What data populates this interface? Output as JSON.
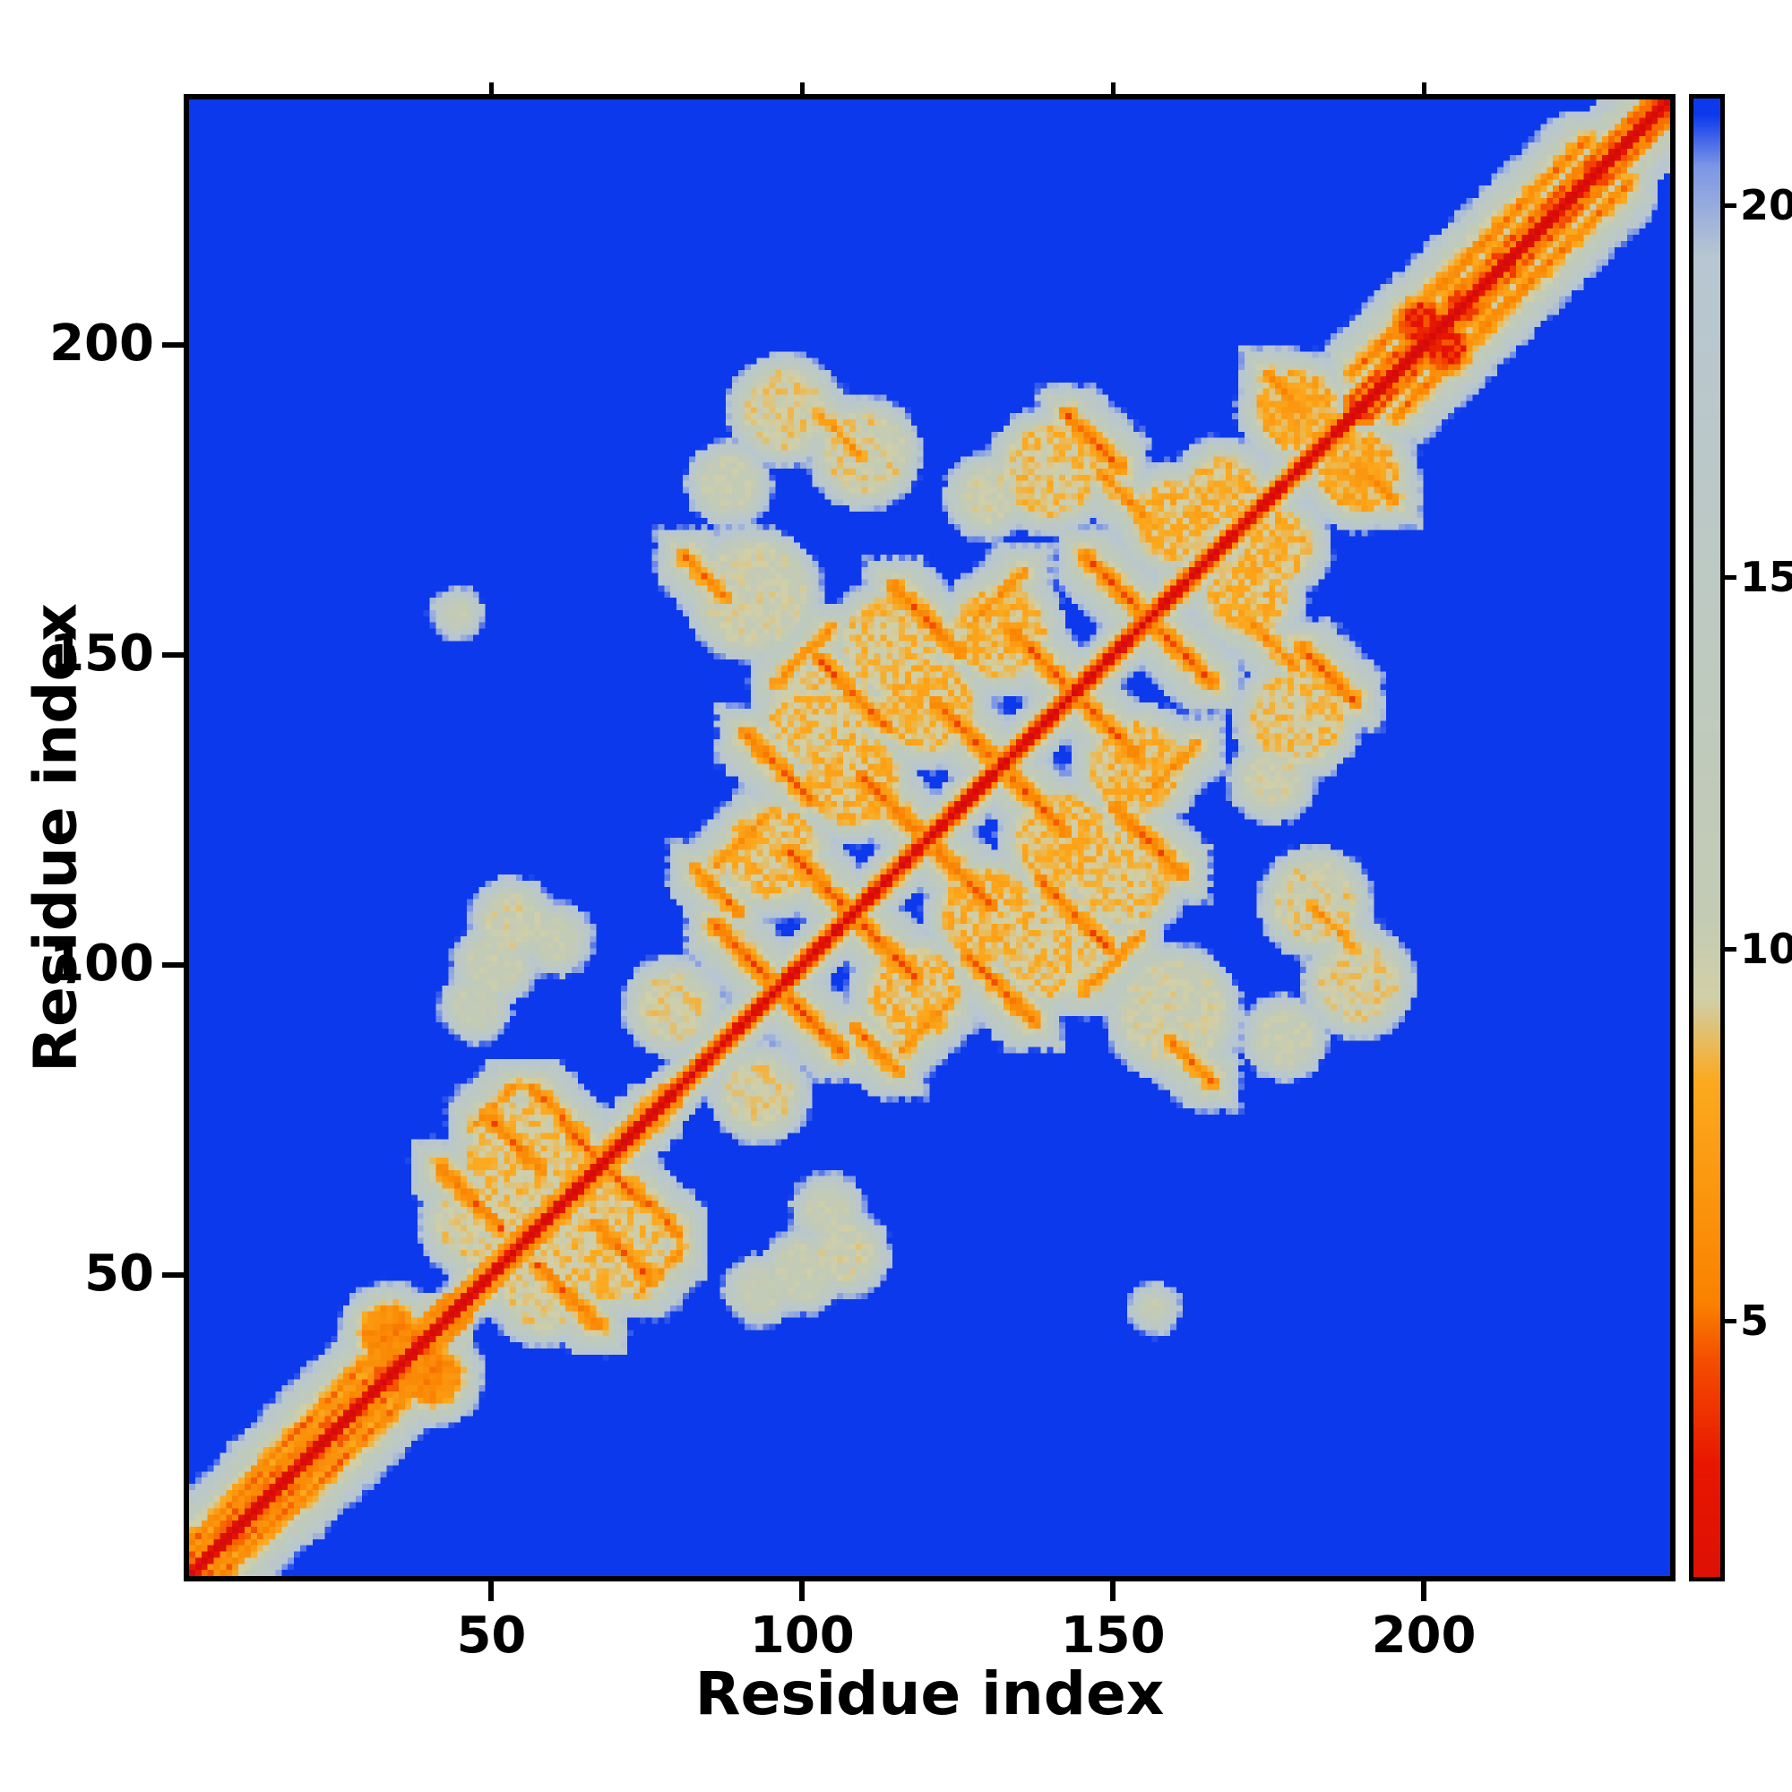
{
  "figure": {
    "background": "#ffffff",
    "frame_color": "#000000"
  },
  "chart_data": {
    "type": "heatmap",
    "title": "",
    "xlabel": "Residue index",
    "ylabel": "Residue index",
    "x_ticks": [
      50,
      100,
      150,
      200
    ],
    "y_ticks": [
      50,
      100,
      150,
      200
    ],
    "axis_min": 1,
    "axis_max": 240,
    "matrix_size": 240,
    "value_cap": 22,
    "background_value_color": "#0d39ec",
    "backbone_slope": 3.3,
    "noise": 2.2,
    "colormap_stops": [
      [
        0,
        "#d40b0b"
      ],
      [
        3.0,
        "#e81600"
      ],
      [
        4.4,
        "#f44d00"
      ],
      [
        5.2,
        "#fa8200"
      ],
      [
        8.2,
        "#fcaa1e"
      ],
      [
        9.3,
        "#d2cfa6"
      ],
      [
        10.5,
        "#c3cbb5"
      ],
      [
        15,
        "#bdc9c3"
      ],
      [
        19.4,
        "#b7c6d2"
      ],
      [
        20.6,
        "#7d97e6"
      ],
      [
        21.3,
        "#0d39ec"
      ],
      [
        30,
        "#0d39ec"
      ]
    ],
    "colorbar": {
      "min": 1.5,
      "max": 21.5,
      "ticks": [
        5,
        10,
        15,
        20
      ]
    },
    "regions": [
      {
        "start": 1,
        "end": 46,
        "slope": 2.05,
        "amp": 1.6
      },
      {
        "start": 44,
        "end": 80,
        "slope": 2.6,
        "amp": 1.0
      },
      {
        "start": 188,
        "end": 240,
        "slope": 1.85,
        "amp": 1.3
      }
    ],
    "features": [
      {
        "t": "s",
        "i": 46,
        "j": 62,
        "len": 10,
        "dir": -1,
        "d": 5
      },
      {
        "t": "s",
        "i": 53,
        "j": 71,
        "len": 9,
        "dir": -1,
        "d": 5
      },
      {
        "t": "s",
        "i": 60,
        "j": 76,
        "len": 8,
        "dir": -1,
        "d": 5.5
      },
      {
        "t": "s",
        "i": 50,
        "j": 77,
        "len": 7,
        "dir": 1,
        "d": 6.5
      },
      {
        "t": "b",
        "i": 55,
        "j": 68,
        "d": 9,
        "r": 9
      },
      {
        "t": "b",
        "i": 47,
        "j": 58,
        "d": 9.5,
        "r": 6
      },
      {
        "t": "s",
        "i": 64,
        "j": 71,
        "len": 6,
        "dir": -1,
        "d": 5.2
      },
      {
        "t": "s",
        "i": 90,
        "j": 102,
        "len": 9,
        "dir": -1,
        "d": 4.8
      },
      {
        "t": "s",
        "i": 102,
        "j": 114,
        "len": 9,
        "dir": -1,
        "d": 4.8
      },
      {
        "t": "s",
        "i": 114,
        "j": 126,
        "len": 9,
        "dir": -1,
        "d": 4.8
      },
      {
        "t": "s",
        "i": 126,
        "j": 138,
        "len": 9,
        "dir": -1,
        "d": 4.8
      },
      {
        "t": "s",
        "i": 138,
        "j": 150,
        "len": 9,
        "dir": -1,
        "d": 4.8
      },
      {
        "t": "s",
        "i": 150,
        "j": 162,
        "len": 9,
        "dir": -1,
        "d": 4.8
      },
      {
        "t": "s",
        "i": 96,
        "j": 132,
        "len": 11,
        "dir": -1,
        "d": 5
      },
      {
        "t": "s",
        "i": 108,
        "j": 144,
        "len": 11,
        "dir": -1,
        "d": 5
      },
      {
        "t": "s",
        "i": 120,
        "j": 156,
        "len": 11,
        "dir": -1,
        "d": 5
      },
      {
        "t": "s",
        "i": 90,
        "j": 120,
        "len": 8,
        "dir": 1,
        "d": 6
      },
      {
        "t": "s",
        "i": 100,
        "j": 150,
        "len": 9,
        "dir": 1,
        "d": 6.2
      },
      {
        "t": "s",
        "i": 86,
        "j": 112,
        "len": 7,
        "dir": -1,
        "d": 5.5
      },
      {
        "t": "s",
        "i": 132,
        "j": 160,
        "len": 8,
        "dir": 1,
        "d": 6.2
      },
      {
        "t": "b",
        "i": 95,
        "j": 118,
        "d": 8.5,
        "r": 7
      },
      {
        "t": "b",
        "i": 108,
        "j": 130,
        "d": 8.5,
        "r": 7
      },
      {
        "t": "b",
        "i": 120,
        "j": 142,
        "d": 8.5,
        "r": 7
      },
      {
        "t": "b",
        "i": 132,
        "j": 154,
        "d": 8.5,
        "r": 7
      },
      {
        "t": "b",
        "i": 102,
        "j": 140,
        "d": 9,
        "r": 7
      },
      {
        "t": "b",
        "i": 114,
        "j": 152,
        "d": 9,
        "r": 7
      },
      {
        "t": "b",
        "i": 92,
        "j": 160,
        "d": 10,
        "r": 8
      },
      {
        "t": "s",
        "i": 84,
        "j": 163,
        "len": 7,
        "dir": -1,
        "d": 5.5
      },
      {
        "t": "s",
        "i": 147,
        "j": 185,
        "len": 9,
        "dir": -1,
        "d": 5
      },
      {
        "t": "b",
        "i": 140,
        "j": 180,
        "d": 9,
        "r": 7
      },
      {
        "t": "s",
        "i": 106,
        "j": 186,
        "len": 7,
        "dir": -1,
        "d": 6.5
      },
      {
        "t": "b",
        "i": 110,
        "j": 183,
        "d": 9.5,
        "r": 6
      },
      {
        "t": "b",
        "i": 97,
        "j": 190,
        "d": 9.5,
        "r": 6
      },
      {
        "t": "s",
        "i": 152,
        "j": 176,
        "len": 7,
        "dir": -1,
        "d": 6
      },
      {
        "t": "b",
        "i": 160,
        "j": 172,
        "d": 8.5,
        "r": 6
      },
      {
        "t": "b",
        "i": 53,
        "j": 107,
        "d": 10,
        "r": 4
      },
      {
        "t": "b",
        "i": 60,
        "j": 104,
        "d": 10.5,
        "r": 3
      },
      {
        "t": "b",
        "i": 79,
        "j": 93,
        "d": 9.5,
        "r": 5
      },
      {
        "t": "s",
        "i": 203,
        "j": 210,
        "len": 28,
        "dir": 1,
        "d": 5.3
      },
      {
        "t": "b",
        "i": 200,
        "j": 204,
        "d": 3.5,
        "r": 3
      },
      {
        "t": "s",
        "i": 219,
        "j": 226,
        "len": 16,
        "dir": 1,
        "d": 5.6
      },
      {
        "t": "s",
        "i": 6,
        "j": 11,
        "len": 14,
        "dir": 1,
        "d": 5.2
      },
      {
        "t": "s",
        "i": 24,
        "j": 30,
        "len": 12,
        "dir": 1,
        "d": 5.4
      },
      {
        "t": "b",
        "i": 33,
        "j": 40,
        "d": 6,
        "r": 4
      },
      {
        "t": "s",
        "i": 14,
        "j": 20,
        "len": 8,
        "dir": 1,
        "d": 5.6
      },
      {
        "t": "b",
        "i": 44,
        "j": 157,
        "d": 11,
        "r": 1.5
      },
      {
        "t": "b",
        "i": 50,
        "j": 100,
        "d": 10.5,
        "r": 4
      },
      {
        "t": "b",
        "i": 47,
        "j": 93,
        "d": 11,
        "r": 3
      },
      {
        "t": "b",
        "i": 168,
        "j": 177,
        "d": 8.5,
        "r": 5
      },
      {
        "t": "b",
        "i": 180,
        "j": 190,
        "d": 8,
        "r": 6
      },
      {
        "t": "s",
        "i": 178,
        "j": 193,
        "len": 6,
        "dir": -1,
        "d": 6
      },
      {
        "t": "b",
        "i": 130,
        "j": 176,
        "d": 10,
        "r": 4
      },
      {
        "t": "b",
        "i": 88,
        "j": 178,
        "d": 10.5,
        "r": 4
      }
    ]
  }
}
